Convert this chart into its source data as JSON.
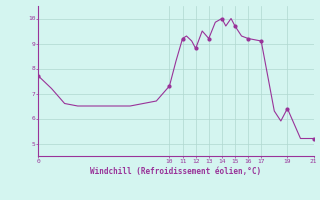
{
  "title": "Windchill (Refroidissement éolien,°C)",
  "background_color": "#d4f5f0",
  "grid_color": "#b0d8d0",
  "line_color": "#993399",
  "marker_color": "#993399",
  "xlim": [
    0,
    21
  ],
  "ylim": [
    4.5,
    10.5
  ],
  "yticks": [
    5,
    6,
    7,
    8,
    9,
    10
  ],
  "xticks": [
    0,
    10,
    11,
    12,
    13,
    14,
    15,
    16,
    17,
    19,
    21
  ],
  "x": [
    0,
    1,
    2,
    3,
    4,
    5,
    6,
    7,
    8,
    9,
    10,
    10.5,
    11,
    11.3,
    11.7,
    12,
    12.5,
    13,
    13.5,
    14,
    14.3,
    14.7,
    15,
    15.5,
    16,
    16.5,
    17,
    17.5,
    18,
    18.5,
    19,
    19.5,
    20,
    20.5,
    21
  ],
  "y": [
    7.7,
    7.2,
    6.6,
    6.5,
    6.5,
    6.5,
    6.5,
    6.5,
    6.6,
    6.7,
    7.3,
    8.3,
    9.2,
    9.3,
    9.1,
    8.8,
    9.5,
    9.2,
    9.85,
    10.0,
    9.7,
    10.0,
    9.7,
    9.3,
    9.2,
    9.15,
    9.1,
    7.7,
    6.3,
    5.9,
    6.4,
    5.8,
    5.2,
    5.2,
    5.2
  ],
  "marker_x": [
    0,
    10,
    11,
    12,
    13,
    14,
    15,
    16,
    17,
    19,
    21
  ],
  "marker_y": [
    7.7,
    7.3,
    9.2,
    8.8,
    9.2,
    10.0,
    9.7,
    9.2,
    9.1,
    6.4,
    5.2
  ]
}
